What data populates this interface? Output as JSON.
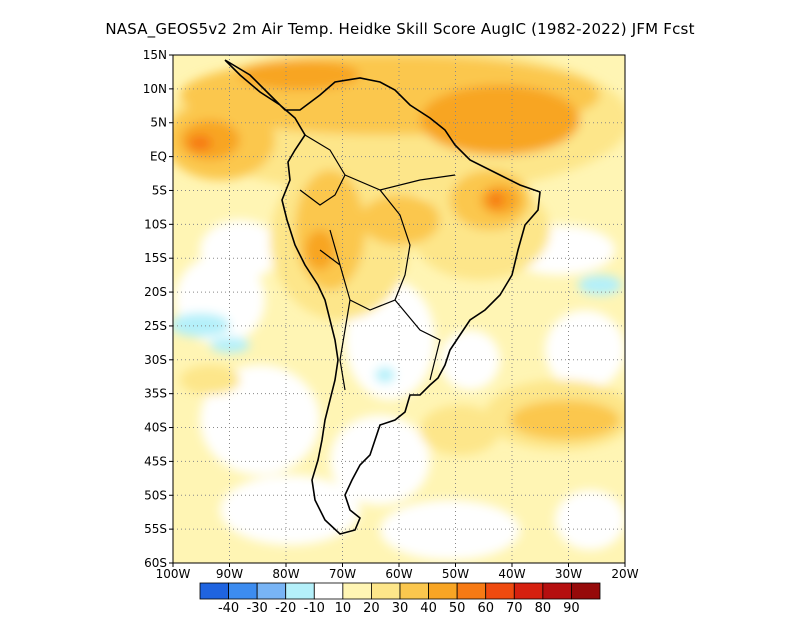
{
  "title": "NASA_GEOS5v2  2m Air Temp. Heidke Skill Score AugIC (1982-2022) JFM Fcst",
  "map": {
    "lat_labels": [
      "15N",
      "10N",
      "5N",
      "EQ",
      "5S",
      "10S",
      "15S",
      "20S",
      "25S",
      "30S",
      "35S",
      "40S",
      "45S",
      "50S",
      "55S",
      "60S"
    ],
    "lon_labels": [
      "100W",
      "90W",
      "80W",
      "70W",
      "60W",
      "50W",
      "40W",
      "30W",
      "20W"
    ],
    "lon_range": [
      -100,
      -20
    ],
    "lat_range": [
      -60,
      15
    ],
    "grid": "dotted"
  },
  "colorbar": {
    "labels": [
      "-40",
      "-30",
      "-20",
      "-10",
      "10",
      "20",
      "30",
      "40",
      "50",
      "60",
      "70",
      "80",
      "90"
    ],
    "colors": [
      "#1f64e0",
      "#3c8cf0",
      "#78b4f5",
      "#b4f0fa",
      "#ffffff",
      "#fff5b4",
      "#fde68a",
      "#fbc74e",
      "#f8a524",
      "#f77a14",
      "#ef4a0f",
      "#d6200f",
      "#b50f0f",
      "#960a0a"
    ]
  }
}
